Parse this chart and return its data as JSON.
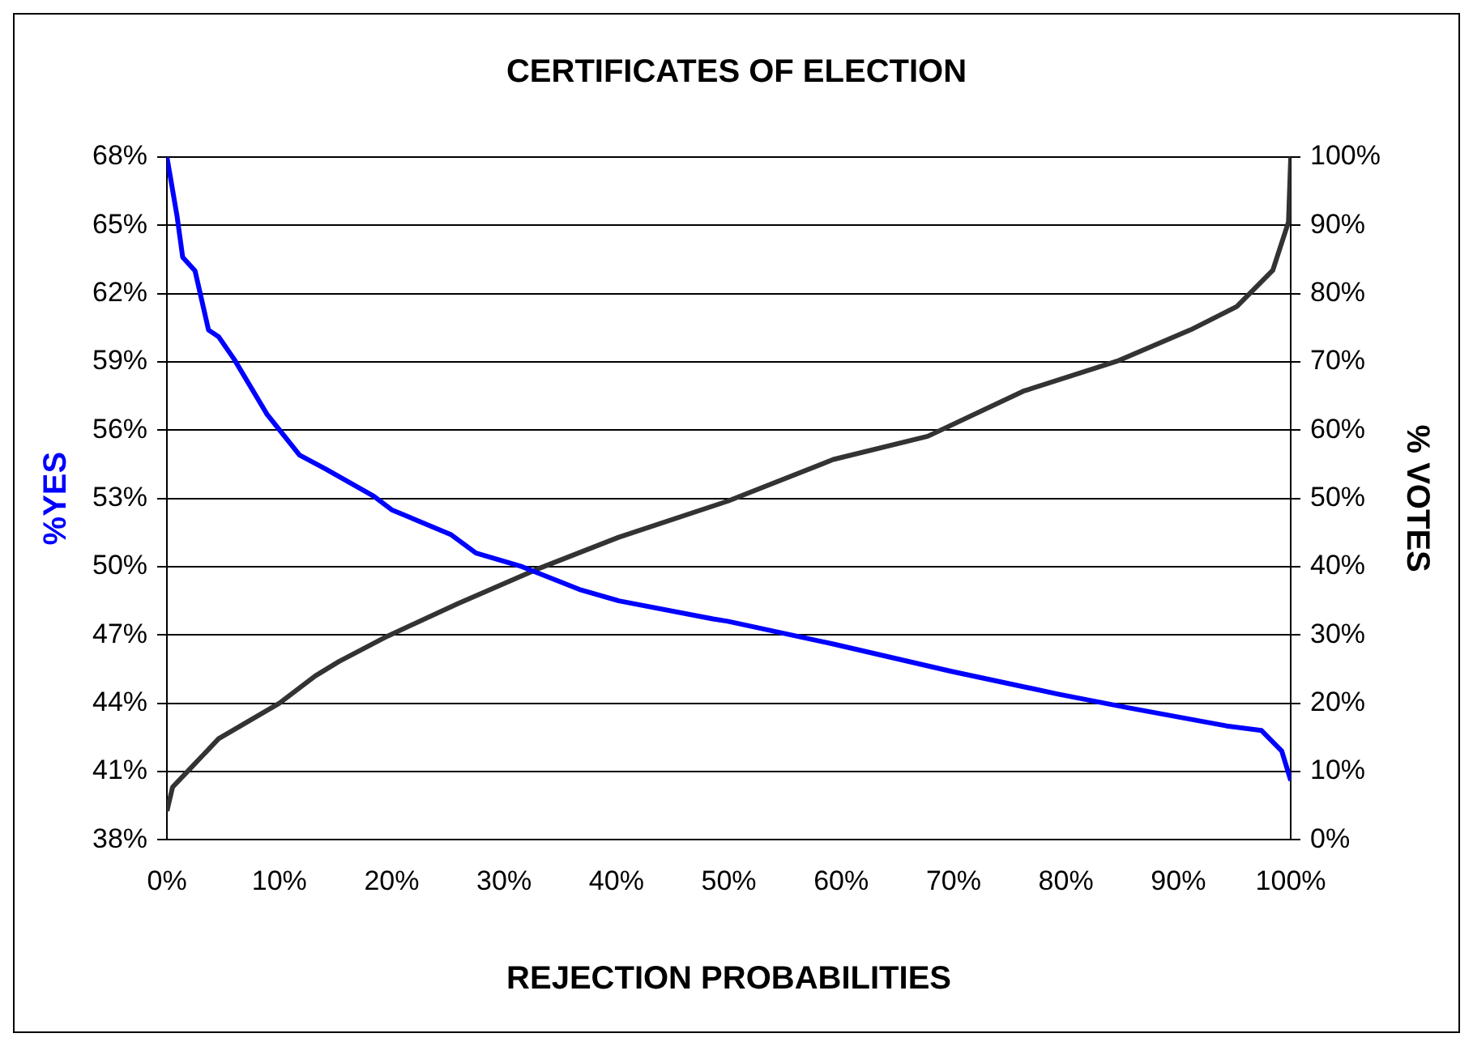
{
  "chart_data": {
    "type": "line",
    "title": "CERTIFICATES OF ELECTION",
    "xlabel": "REJECTION PROBABILITIES",
    "ylabel": "%YES",
    "y2label": "% VOTES",
    "xlim": [
      0,
      100
    ],
    "xticks": [
      {
        "value": 0,
        "label": "0%"
      },
      {
        "value": 10,
        "label": "10%"
      },
      {
        "value": 20,
        "label": "20%"
      },
      {
        "value": 30,
        "label": "30%"
      },
      {
        "value": 40,
        "label": "40%"
      },
      {
        "value": 50,
        "label": "50%"
      },
      {
        "value": 60,
        "label": "60%"
      },
      {
        "value": 70,
        "label": "70%"
      },
      {
        "value": 80,
        "label": "80%"
      },
      {
        "value": 90,
        "label": "90%"
      },
      {
        "value": 100,
        "label": "100%"
      }
    ],
    "ylim": [
      38,
      68
    ],
    "yticks": [
      {
        "value": 38,
        "label": "38%"
      },
      {
        "value": 41,
        "label": "41%"
      },
      {
        "value": 44,
        "label": "44%"
      },
      {
        "value": 47,
        "label": "47%"
      },
      {
        "value": 50,
        "label": "50%"
      },
      {
        "value": 53,
        "label": "53%"
      },
      {
        "value": 56,
        "label": "56%"
      },
      {
        "value": 59,
        "label": "59%"
      },
      {
        "value": 62,
        "label": "62%"
      },
      {
        "value": 65,
        "label": "65%"
      },
      {
        "value": 68,
        "label": "68%"
      }
    ],
    "y2lim": [
      0,
      100
    ],
    "y2ticks": [
      {
        "value": 0,
        "label": "0%"
      },
      {
        "value": 10,
        "label": "10%"
      },
      {
        "value": 20,
        "label": "20%"
      },
      {
        "value": 30,
        "label": "30%"
      },
      {
        "value": 40,
        "label": "40%"
      },
      {
        "value": 50,
        "label": "50%"
      },
      {
        "value": 60,
        "label": "60%"
      },
      {
        "value": 70,
        "label": "70%"
      },
      {
        "value": 80,
        "label": "80%"
      },
      {
        "value": 90,
        "label": "90%"
      },
      {
        "value": 100,
        "label": "100%"
      }
    ],
    "grid": "y",
    "legend": false,
    "marker": "none",
    "series": [
      {
        "color": "#0000ff",
        "x": [
          0,
          0.9,
          1.4,
          2.5,
          3.7,
          4.6,
          6,
          8.9,
          11.8,
          14.1,
          18.4,
          20,
          25.3,
          27.5,
          31.6,
          36.7,
          40.2,
          48.6,
          49.9,
          59.3,
          69.8,
          79.3,
          85.5,
          94.3,
          97.4,
          99.2,
          100
        ],
        "values": [
          68,
          65.4,
          63.6,
          63,
          60.4,
          60.1,
          59.1,
          56.7,
          54.9,
          54.3,
          53.1,
          52.5,
          51.4,
          50.6,
          50,
          49,
          48.5,
          47.7,
          47.6,
          46.6,
          45.4,
          44.4,
          43.8,
          43,
          42.8,
          41.9,
          40.6
        ]
      },
      {
        "color": "#333333",
        "axis": "y2",
        "x": [
          0,
          0.5,
          2,
          4.6,
          10,
          13.2,
          15.3,
          19.6,
          25.9,
          33.2,
          40.2,
          49.9,
          59.3,
          67.7,
          76.2,
          84.7,
          91.1,
          95.2,
          98.4,
          99.8,
          100
        ],
        "values": [
          4.2,
          7.7,
          10.3,
          14.8,
          20,
          24,
          26.1,
          29.8,
          34.6,
          39.8,
          44.3,
          49.6,
          55.7,
          59.1,
          65.7,
          70.2,
          74.7,
          78.1,
          83.4,
          90.5,
          100
        ]
      }
    ]
  }
}
